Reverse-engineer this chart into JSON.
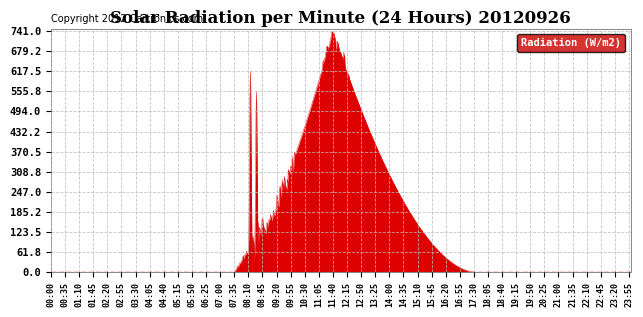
{
  "title": "Solar Radiation per Minute (24 Hours) 20120926",
  "copyright_text": "Copyright 2012 Cartronics.com",
  "legend_label": "Radiation (W/m2)",
  "yticks": [
    0.0,
    61.8,
    123.5,
    185.2,
    247.0,
    308.8,
    370.5,
    432.2,
    494.0,
    555.8,
    617.5,
    679.2,
    741.0
  ],
  "ymax": 741.0,
  "ymin": 0.0,
  "fill_color": "#dd0000",
  "line_color": "#dd0000",
  "bg_color": "#ffffff",
  "grid_color": "#aaaaaa",
  "dashed_zero_color": "#ff0000",
  "legend_bg": "#cc0000",
  "legend_text_color": "#ffffff",
  "title_fontsize": 12,
  "copyright_fontsize": 7,
  "total_minutes": 1440,
  "xlabel_interval_minutes": 35
}
